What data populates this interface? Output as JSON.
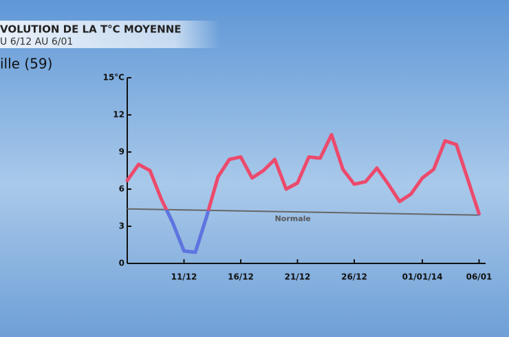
{
  "chart_data": {
    "type": "line",
    "title": "VOLUTION DE LA T°C MOYENNE",
    "subtitle": "U 6/12 AU 6/01",
    "location": "ille (59)",
    "categories": [
      null,
      null,
      null,
      null,
      null,
      "11/12",
      null,
      null,
      null,
      null,
      "16/12",
      null,
      null,
      null,
      null,
      "21/12",
      null,
      null,
      null,
      null,
      "26/12",
      null,
      null,
      null,
      null,
      null,
      "01/01/14",
      null,
      null,
      null,
      null,
      "06/01"
    ],
    "values": [
      6.7,
      8.0,
      7.5,
      5.2,
      3.3,
      1.0,
      0.9,
      3.8,
      7.0,
      8.4,
      8.6,
      6.9,
      7.5,
      8.4,
      6.0,
      6.5,
      8.6,
      8.5,
      10.4,
      7.6,
      6.4,
      6.6,
      7.7,
      6.4,
      5.0,
      5.6,
      6.9,
      7.6,
      9.9,
      9.6,
      6.8,
      4.0
    ],
    "above_color": "#ec4a6c",
    "below_color": "#5b76e2",
    "normal": {
      "label": "Normale",
      "start": 4.4,
      "end": 3.9,
      "color": "#666666"
    },
    "ylim": [
      0,
      15
    ],
    "yticks": [
      0,
      3,
      6,
      9,
      12,
      {
        "value": 15,
        "label": "15°C"
      }
    ]
  }
}
